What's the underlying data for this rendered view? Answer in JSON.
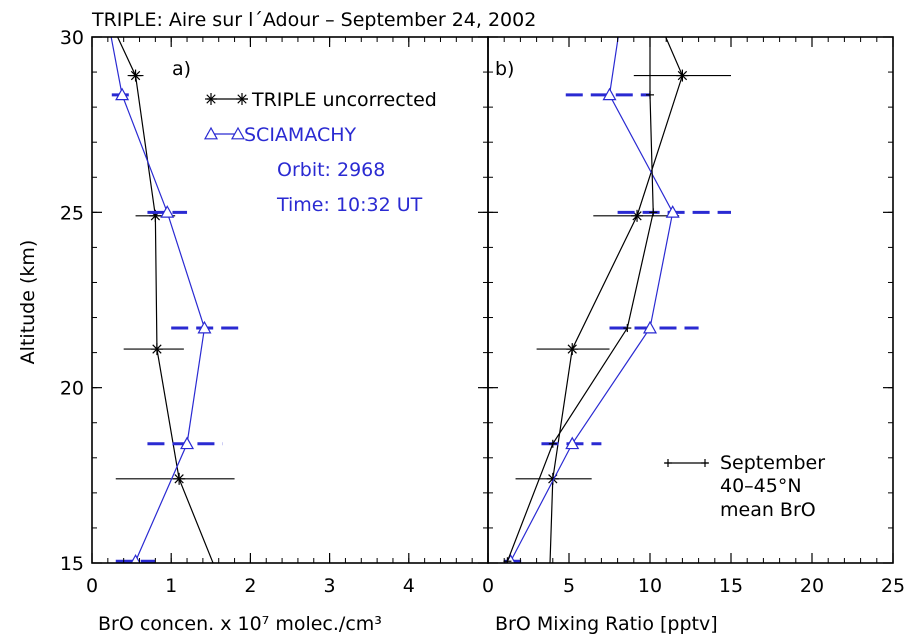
{
  "figure_title": "TRIPLE:  Aire sur l´Adour – September 24, 2002",
  "y_axis_label": "Altitude (km)",
  "colors": {
    "triple": "#000000",
    "sciamachy": "#2a2ad2"
  },
  "chart_data": [
    {
      "type": "line",
      "panel_label": "a)",
      "xlabel": "BrO concen. x 10⁷ molec./cm³",
      "ylabel": "Altitude (km)",
      "xlim": [
        0,
        5
      ],
      "ylim": [
        15,
        30
      ],
      "x_ticks": [
        0,
        1,
        2,
        3,
        4
      ],
      "y_ticks": [
        15,
        20,
        25,
        30
      ],
      "legend": {
        "position": "top-right",
        "entries": [
          "TRIPLE uncorrected",
          "SCIAMACHY"
        ],
        "notes": [
          "Orbit: 2968",
          "Time: 10:32 UT"
        ]
      },
      "series": [
        {
          "name": "TRIPLE uncorrected",
          "marker": "asterisk",
          "line": [
            {
              "x": 0.22,
              "y": 30.5
            },
            {
              "x": 0.55,
              "y": 28.9
            },
            {
              "x": 0.8,
              "y": 24.9
            },
            {
              "x": 0.82,
              "y": 21.1
            },
            {
              "x": 1.1,
              "y": 17.4
            },
            {
              "x": 1.6,
              "y": 14.6
            }
          ],
          "points": [
            {
              "x": 0.55,
              "y": 28.9,
              "xerr": [
                0.45,
                0.65
              ]
            },
            {
              "x": 0.8,
              "y": 24.9,
              "xerr": [
                0.55,
                1.05
              ]
            },
            {
              "x": 0.82,
              "y": 21.1,
              "xerr": [
                0.4,
                1.16
              ]
            },
            {
              "x": 1.1,
              "y": 17.4,
              "xerr": [
                0.3,
                1.8
              ]
            }
          ]
        },
        {
          "name": "SCIAMACHY",
          "marker": "triangle",
          "line": [
            {
              "x": 0.2,
              "y": 30.5
            },
            {
              "x": 0.38,
              "y": 28.35
            },
            {
              "x": 0.95,
              "y": 25.0
            },
            {
              "x": 1.42,
              "y": 21.7
            },
            {
              "x": 1.2,
              "y": 18.4
            },
            {
              "x": 0.55,
              "y": 15.05
            }
          ],
          "points": [
            {
              "x": 0.38,
              "y": 28.35,
              "xerr": [
                0.25,
                0.5
              ]
            },
            {
              "x": 0.95,
              "y": 25.0,
              "xerr": [
                0.7,
                1.2
              ]
            },
            {
              "x": 1.42,
              "y": 21.7,
              "xerr": [
                1.0,
                1.85
              ]
            },
            {
              "x": 1.2,
              "y": 18.4,
              "xerr": [
                0.7,
                1.65
              ]
            },
            {
              "x": 0.55,
              "y": 15.05,
              "xerr": [
                0.3,
                0.8
              ]
            }
          ]
        }
      ]
    },
    {
      "type": "line",
      "panel_label": "b)",
      "xlabel": "BrO Mixing Ratio [pptv]",
      "ylabel": "Altitude (km)",
      "xlim": [
        0,
        25
      ],
      "ylim": [
        15,
        30
      ],
      "x_ticks": [
        0,
        5,
        10,
        15,
        20,
        25
      ],
      "y_ticks": [
        15,
        20,
        25,
        30
      ],
      "legend": {
        "position": "bottom-right",
        "entries": [
          "September",
          "40–45°N",
          "mean BrO"
        ]
      },
      "series": [
        {
          "name": "TRIPLE uncorrected",
          "marker": "asterisk",
          "line": [
            {
              "x": 10.5,
              "y": 30.5
            },
            {
              "x": 12.0,
              "y": 28.9
            },
            {
              "x": 9.2,
              "y": 24.9
            },
            {
              "x": 5.2,
              "y": 21.1
            },
            {
              "x": 4.0,
              "y": 17.4
            },
            {
              "x": 3.8,
              "y": 14.6
            }
          ],
          "points": [
            {
              "x": 12.0,
              "y": 28.9,
              "xerr": [
                9.0,
                15.0
              ]
            },
            {
              "x": 9.2,
              "y": 24.9,
              "xerr": [
                6.5,
                11.8
              ]
            },
            {
              "x": 5.2,
              "y": 21.1,
              "xerr": [
                3.0,
                7.5
              ]
            },
            {
              "x": 4.0,
              "y": 17.4,
              "xerr": [
                1.7,
                6.4
              ]
            }
          ]
        },
        {
          "name": "SCIAMACHY",
          "marker": "triangle",
          "line": [
            {
              "x": 8.2,
              "y": 30.5
            },
            {
              "x": 7.5,
              "y": 28.35
            },
            {
              "x": 11.4,
              "y": 25.0
            },
            {
              "x": 10.0,
              "y": 21.7
            },
            {
              "x": 5.2,
              "y": 18.4
            },
            {
              "x": 1.4,
              "y": 15.05
            }
          ],
          "points": [
            {
              "x": 7.5,
              "y": 28.35,
              "xerr": [
                4.8,
                10.0
              ]
            },
            {
              "x": 11.4,
              "y": 25.0,
              "xerr": [
                8.0,
                15.0
              ]
            },
            {
              "x": 10.0,
              "y": 21.7,
              "xerr": [
                7.5,
                13.0
              ]
            },
            {
              "x": 5.2,
              "y": 18.4,
              "xerr": [
                3.3,
                7.0
              ]
            },
            {
              "x": 1.4,
              "y": 15.05,
              "xerr": [
                1.0,
                2.2
              ]
            }
          ]
        },
        {
          "name": "September 40–45°N mean BrO",
          "marker": "plus",
          "line": [
            {
              "x": 10.0,
              "y": 30.5
            },
            {
              "x": 10.0,
              "y": 28.35
            },
            {
              "x": 10.2,
              "y": 25.0
            },
            {
              "x": 8.6,
              "y": 21.7
            },
            {
              "x": 4.0,
              "y": 18.4
            },
            {
              "x": 1.2,
              "y": 15.05
            }
          ],
          "points": [
            {
              "x": 10.0,
              "y": 28.35
            },
            {
              "x": 10.2,
              "y": 25.0
            },
            {
              "x": 8.6,
              "y": 21.7
            },
            {
              "x": 4.0,
              "y": 18.4
            },
            {
              "x": 1.2,
              "y": 15.05
            }
          ]
        }
      ]
    }
  ]
}
